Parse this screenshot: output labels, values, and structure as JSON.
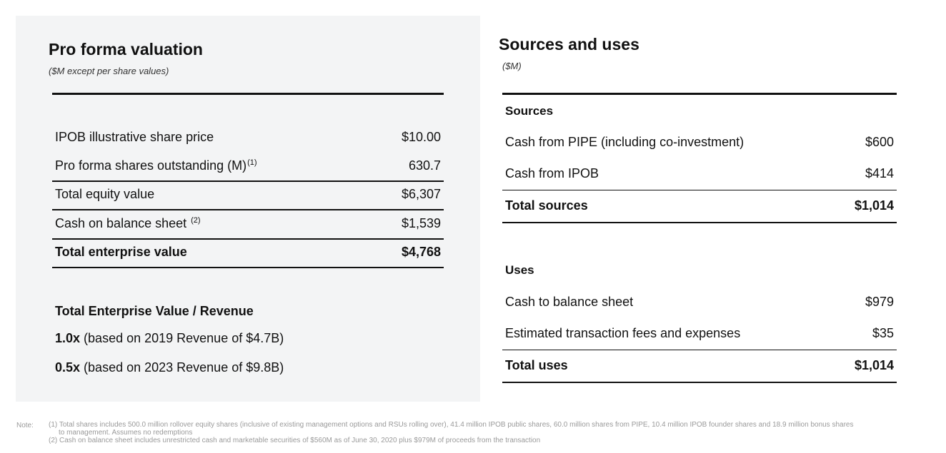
{
  "valuation": {
    "title": "Pro forma valuation",
    "subtitle": "($M except per share values)",
    "rows": [
      {
        "label": "IPOB illustrative share price",
        "footnote": "",
        "value": "$10.00"
      },
      {
        "label": "Pro forma shares outstanding (M)",
        "footnote": "(1)",
        "value": "630.7"
      },
      {
        "label": "Total equity value",
        "footnote": "",
        "value": "$6,307"
      },
      {
        "label": "Cash on balance sheet ",
        "footnote": "(2)",
        "value": "$1,539"
      },
      {
        "label": "Total enterprise value",
        "footnote": "",
        "value": "$4,768"
      }
    ],
    "multiple_heading": "Total Enterprise Value / Revenue",
    "multiples": [
      {
        "multiple": "1.0x",
        "text": " (based on 2019 Revenue of $4.7B)"
      },
      {
        "multiple": "0.5x",
        "text": " (based on 2023 Revenue of $9.8B)"
      }
    ]
  },
  "sources_uses": {
    "title": "Sources and uses",
    "subtitle": "($M)",
    "sources_label": "Sources",
    "sources": [
      {
        "label": "Cash from PIPE (including co-investment)",
        "value": "$600"
      },
      {
        "label": "Cash from IPOB",
        "value": "$414"
      }
    ],
    "total_sources": {
      "label": "Total sources",
      "value": "$1,014"
    },
    "uses_label": "Uses",
    "uses": [
      {
        "label": "Cash to balance sheet",
        "value": "$979"
      },
      {
        "label": "Estimated transaction fees and expenses",
        "value": "$35"
      }
    ],
    "total_uses": {
      "label": "Total uses",
      "value": "$1,014"
    }
  },
  "notes": {
    "label": "Note:",
    "lines": [
      "(1) Total shares includes 500.0 million rollover equity shares (inclusive of existing management options and RSUs rolling over), 41.4 million IPOB public shares, 60.0 million shares from PIPE, 10.4 million IPOB founder shares and 18.9 million bonus shares",
      "to management. Assumes no redemptions",
      "(2) Cash on balance sheet includes unrestricted cash and marketable securities of $560M as of June 30, 2020 plus $979M of proceeds from the transaction"
    ]
  }
}
